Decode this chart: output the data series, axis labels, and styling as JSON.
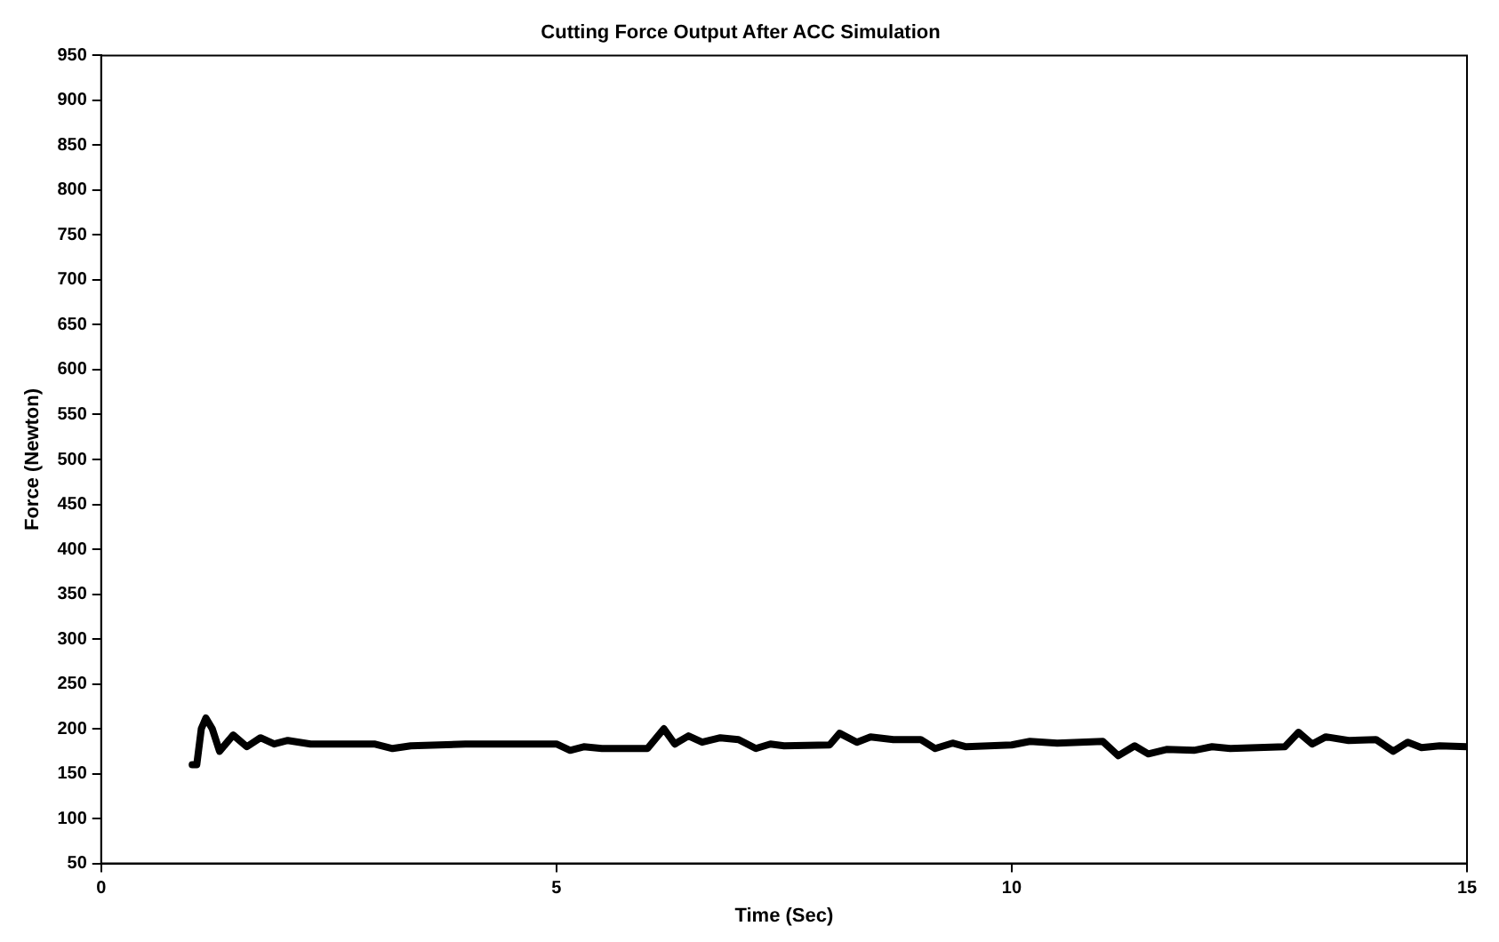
{
  "chart_data": {
    "type": "line",
    "title": "Cutting Force Output After ACC Simulation",
    "xlabel": "Time (Sec)",
    "ylabel": "Force (Newton)",
    "xlim": [
      0,
      15
    ],
    "xticks": [
      0,
      5,
      10,
      15
    ],
    "ylim": [
      50,
      950
    ],
    "yticks": [
      50,
      100,
      150,
      200,
      250,
      300,
      350,
      400,
      450,
      500,
      550,
      600,
      650,
      700,
      750,
      800,
      850,
      900,
      950
    ],
    "grid": false,
    "legend": false,
    "marker": "none",
    "line_style": "solid",
    "series": [
      {
        "color": "#000000",
        "x": [
          1.0,
          1.05,
          1.1,
          1.15,
          1.22,
          1.3,
          1.45,
          1.6,
          1.75,
          1.9,
          2.05,
          2.3,
          3.0,
          3.2,
          3.4,
          4.0,
          4.5,
          5.0,
          5.15,
          5.3,
          5.5,
          6.0,
          6.18,
          6.3,
          6.45,
          6.6,
          6.8,
          7.0,
          7.19,
          7.35,
          7.5,
          8.0,
          8.11,
          8.3,
          8.45,
          8.7,
          9.0,
          9.16,
          9.35,
          9.5,
          10.0,
          10.2,
          10.5,
          11.0,
          11.17,
          11.35,
          11.5,
          11.7,
          12.0,
          12.2,
          12.4,
          13.0,
          13.15,
          13.3,
          13.45,
          13.7,
          14.0,
          14.19,
          14.35,
          14.5,
          14.7,
          15.0
        ],
        "values": [
          160,
          160,
          200,
          212,
          200,
          175,
          193,
          180,
          190,
          183,
          187,
          183,
          183,
          178,
          181,
          183,
          183,
          183,
          176,
          180,
          178,
          178,
          200,
          183,
          192,
          185,
          190,
          188,
          178,
          183,
          181,
          182,
          195,
          185,
          191,
          188,
          188,
          178,
          184,
          180,
          182,
          186,
          184,
          186,
          170,
          181,
          172,
          177,
          176,
          180,
          178,
          180,
          196,
          183,
          191,
          187,
          188,
          175,
          185,
          179,
          181,
          180
        ]
      }
    ]
  }
}
